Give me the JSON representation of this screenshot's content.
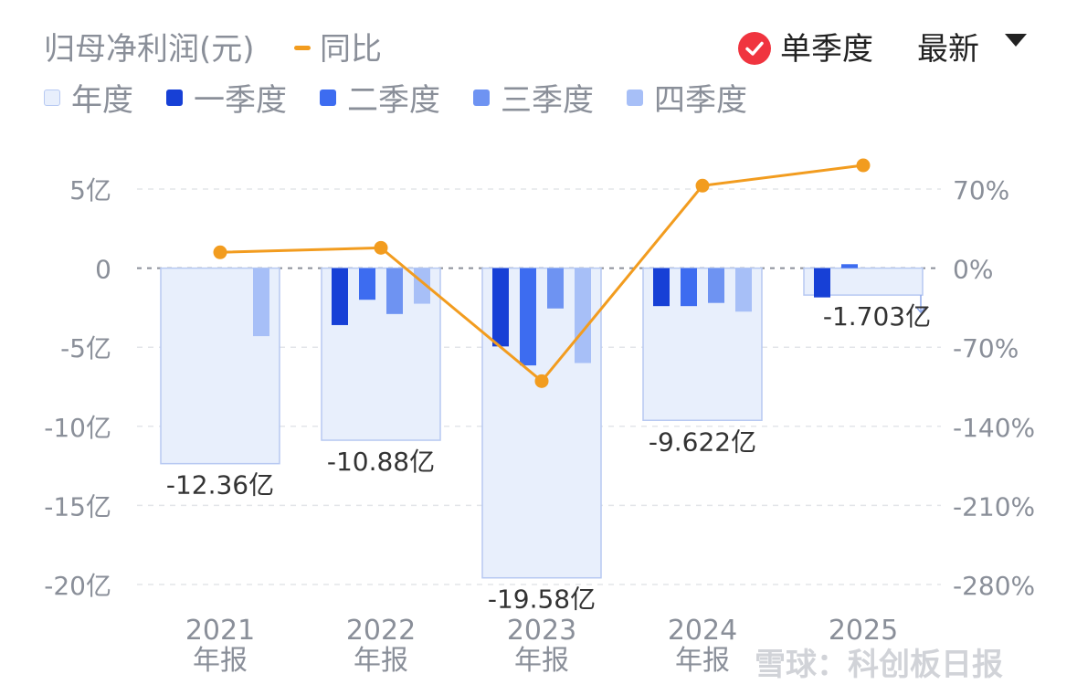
{
  "header": {
    "title": "归母净利润(元)",
    "yoy_label": "同比",
    "single_quarter_label": "单季度",
    "latest_label": "最新"
  },
  "legend": [
    {
      "name": "年度",
      "color": "#e8effc"
    },
    {
      "name": "一季度",
      "color": "#1740d6"
    },
    {
      "name": "二季度",
      "color": "#3d6cf0"
    },
    {
      "name": "三季度",
      "color": "#6e93f2"
    },
    {
      "name": "四季度",
      "color": "#a7bff7"
    }
  ],
  "watermark": "雪球：科创板日报",
  "icons": {
    "check": "check-circle-icon",
    "dropdown": "triangle-down-icon",
    "yoy": "orange-line-icon"
  },
  "colors": {
    "annual_fill": "#e8effc",
    "annual_stroke": "#b7c9f2",
    "yoy_line": "#f29c1f"
  },
  "chart_data": {
    "type": "bar",
    "categories": [
      "2021\n年报",
      "2022\n年报",
      "2023\n年报",
      "2024\n年报",
      "2025"
    ],
    "category_lines": [
      [
        "2021",
        "年报"
      ],
      [
        "2022",
        "年报"
      ],
      [
        "2023",
        "年报"
      ],
      [
        "2024",
        "年报"
      ],
      [
        "2025",
        ""
      ]
    ],
    "annual": {
      "name": "年度",
      "values": [
        -12.36,
        -10.88,
        -19.58,
        -9.622,
        -1.703
      ],
      "labels": [
        "-12.36亿",
        "-10.88亿",
        "-19.58亿",
        "-9.622亿",
        "-1.703亿"
      ]
    },
    "series": [
      {
        "name": "一季度",
        "values": [
          null,
          -3.6,
          -4.95,
          -2.4,
          -1.85
        ]
      },
      {
        "name": "二季度",
        "values": [
          null,
          -2.0,
          -6.15,
          -2.4,
          0.25
        ]
      },
      {
        "name": "三季度",
        "values": [
          null,
          -2.9,
          -2.55,
          -2.2,
          null
        ]
      },
      {
        "name": "四季度",
        "values": [
          -4.3,
          -2.25,
          -6.0,
          -2.75,
          null
        ]
      }
    ],
    "yoy": {
      "name": "同比",
      "values": [
        14,
        18,
        -100,
        73,
        91
      ],
      "unit": "%"
    },
    "ylim": [
      -20,
      5
    ],
    "y_ticks": [
      "5亿",
      "0",
      "-5亿",
      "-10亿",
      "-15亿",
      "-20亿"
    ],
    "y_tick_values": [
      5,
      0,
      -5,
      -10,
      -15,
      -20
    ],
    "y2lim": [
      -280,
      70
    ],
    "y2_ticks": [
      "70%",
      "0%",
      "-70%",
      "-140%",
      "-210%",
      "-280%"
    ],
    "y2_tick_values": [
      70,
      0,
      -70,
      -140,
      -210,
      -280
    ],
    "grid": true
  }
}
